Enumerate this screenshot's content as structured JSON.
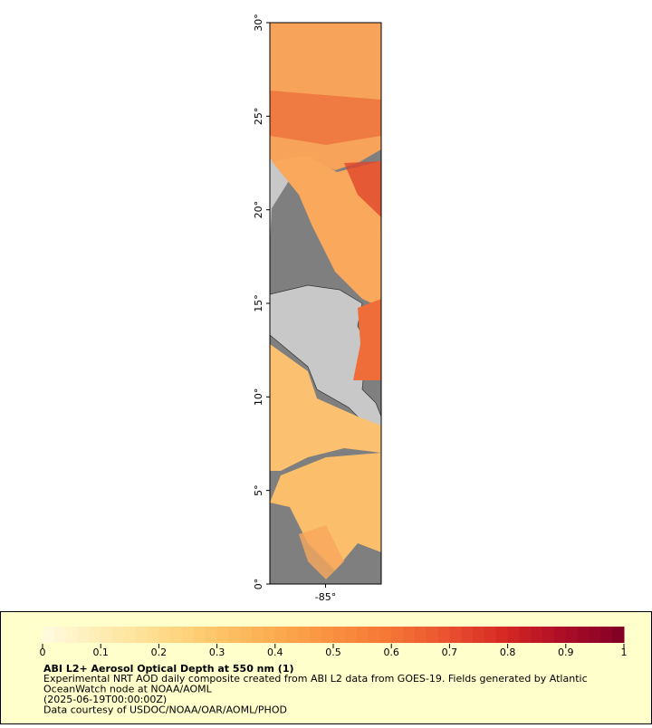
{
  "chart_data": {
    "type": "map",
    "xlim": [
      -88,
      -82
    ],
    "ylim": [
      0,
      30
    ],
    "xticks": [
      {
        "value": -85,
        "label": "-85°"
      }
    ],
    "yticks": [
      {
        "value": 0,
        "label": "0°"
      },
      {
        "value": 5,
        "label": "5°"
      },
      {
        "value": 10,
        "label": "10°"
      },
      {
        "value": 15,
        "label": "15°"
      },
      {
        "value": 20,
        "label": "20°"
      },
      {
        "value": 25,
        "label": "25°"
      },
      {
        "value": 30,
        "label": "30°"
      }
    ],
    "colorbar": {
      "range": [
        0,
        1
      ],
      "ticks": [
        0,
        0.1,
        0.2,
        0.3,
        0.4,
        0.5,
        0.6,
        0.7,
        0.8,
        0.9,
        1
      ],
      "colors": [
        "#fffbe0",
        "#feedb4",
        "#fedc8c",
        "#fdc568",
        "#fbab50",
        "#f99040",
        "#f47534",
        "#ea5030",
        "#d42622",
        "#aa0c28",
        "#800026"
      ]
    },
    "title": "ABI L2+ Aerosol Optical Depth at 550 nm (1)",
    "description": [
      "Experimental NRT AOD daily composite created from ABI L2 data from GOES-19. Fields generated by Atlantic",
      "OceanWatch node at NOAA/AOML",
      "(2025-06-19T00:00:00Z)",
      "Data courtesy of USDOC/NOAA/OAR/AOML/PHOD"
    ]
  }
}
